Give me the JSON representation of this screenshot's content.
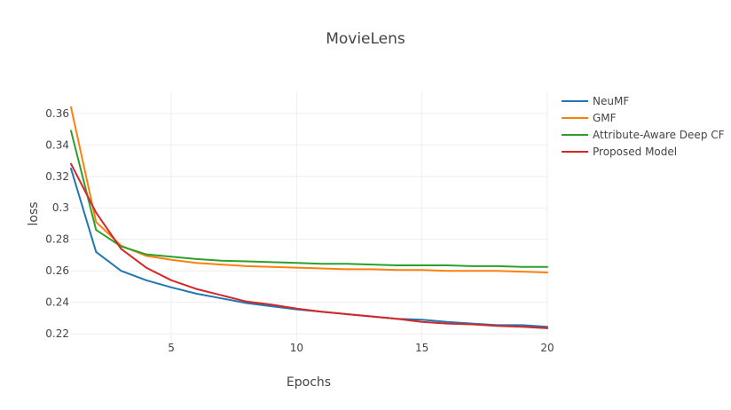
{
  "chart_data": {
    "type": "line",
    "title": "MovieLens",
    "xlabel": "Epochs",
    "ylabel": "loss",
    "xlim": [
      1,
      20
    ],
    "ylim": [
      0.215,
      0.374
    ],
    "x_ticks": [
      5,
      10,
      15,
      20
    ],
    "x_tick_labels": [
      "5",
      "10",
      "15",
      "20"
    ],
    "y_ticks": [
      0.22,
      0.24,
      0.26,
      0.28,
      0.3,
      0.32,
      0.34,
      0.36
    ],
    "y_tick_labels": [
      "0.22",
      "0.24",
      "0.26",
      "0.28",
      "0.3",
      "0.32",
      "0.34",
      "0.36"
    ],
    "grid": true,
    "legend_position": "right",
    "x": [
      1,
      2,
      3,
      4,
      5,
      6,
      7,
      8,
      9,
      10,
      11,
      12,
      13,
      14,
      15,
      16,
      17,
      18,
      19,
      20
    ],
    "series": [
      {
        "name": "NeuMF",
        "color": "#1f77b4",
        "values": [
          0.325,
          0.272,
          0.26,
          0.254,
          0.2495,
          0.2455,
          0.2425,
          0.2395,
          0.2375,
          0.2355,
          0.234,
          0.2325,
          0.231,
          0.2295,
          0.229,
          0.2275,
          0.2265,
          0.2255,
          0.2255,
          0.2245
        ]
      },
      {
        "name": "GMF",
        "color": "#ff7f0e",
        "values": [
          0.364,
          0.291,
          0.276,
          0.2695,
          0.267,
          0.265,
          0.264,
          0.263,
          0.2625,
          0.262,
          0.2615,
          0.261,
          0.261,
          0.2605,
          0.2605,
          0.26,
          0.26,
          0.26,
          0.2595,
          0.259
        ]
      },
      {
        "name": "Attribute-Aware Deep CF",
        "color": "#2ca02c",
        "values": [
          0.349,
          0.286,
          0.2755,
          0.2705,
          0.269,
          0.2675,
          0.2665,
          0.266,
          0.2655,
          0.265,
          0.2645,
          0.2645,
          0.264,
          0.2635,
          0.2635,
          0.2635,
          0.263,
          0.263,
          0.2625,
          0.2625
        ]
      },
      {
        "name": "Proposed Model",
        "color": "#d62728",
        "values": [
          0.328,
          0.297,
          0.274,
          0.262,
          0.254,
          0.2485,
          0.2445,
          0.2405,
          0.2385,
          0.236,
          0.234,
          0.2325,
          0.231,
          0.2295,
          0.2275,
          0.2265,
          0.226,
          0.225,
          0.2245,
          0.2235
        ]
      }
    ]
  }
}
